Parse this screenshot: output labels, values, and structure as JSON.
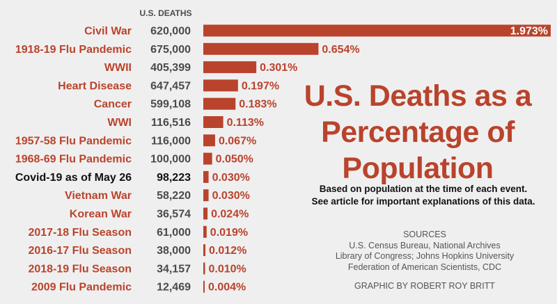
{
  "header": {
    "deaths_column": "U.S. DEATHS"
  },
  "title": "U.S. Deaths as a Percentage of Population",
  "subtitle_lines": [
    "Based on population at the time of each event.",
    "See article for important explanations of this data."
  ],
  "sources": {
    "heading": "SOURCES",
    "lines": [
      "U.S. Census Bureau, National Archives",
      "Library of Congress; Johns Hopkins University",
      "Federation of American Scientists, CDC"
    ]
  },
  "credit": "GRAPHIC BY ROBERT ROY BRITT",
  "colors": {
    "accent": "#b9432c",
    "highlight": "#111111",
    "deaths": "#4a4a4a",
    "background": "#f0efef"
  },
  "chart_data": {
    "type": "bar",
    "orientation": "horizontal",
    "categories": [
      "Civil War",
      "1918-19 Flu Pandemic",
      "WWII",
      "Heart Disease",
      "Cancer",
      "WWI",
      "1957-58 Flu Pandemic",
      "1968-69 Flu Pandemic",
      "Covid-19 as of May 26",
      "Vietnam War",
      "Korean War",
      "2017-18 Flu Season",
      "2016-17 Flu Season",
      "2018-19 Flu Season",
      "2009 Flu Pandemic"
    ],
    "deaths": [
      "620,000",
      "675,000",
      "405,399",
      "647,457",
      "599,108",
      "116,516",
      "116,000",
      "100,000",
      "98,223",
      "58,220",
      "36,574",
      "61,000",
      "38,000",
      "34,157",
      "12,469"
    ],
    "values": [
      1.973,
      0.654,
      0.301,
      0.197,
      0.183,
      0.113,
      0.067,
      0.05,
      0.03,
      0.03,
      0.024,
      0.019,
      0.012,
      0.01,
      0.004
    ],
    "value_labels": [
      "1.973%",
      "0.654%",
      "0.301%",
      "0.197%",
      "0.183%",
      "0.113%",
      "0.067%",
      "0.050%",
      "0.030%",
      "0.030%",
      "0.024%",
      "0.019%",
      "0.012%",
      "0.010%",
      "0.004%"
    ],
    "highlight_index": 8,
    "xlim": [
      0,
      1.973
    ],
    "grid": false,
    "legend": "none"
  }
}
